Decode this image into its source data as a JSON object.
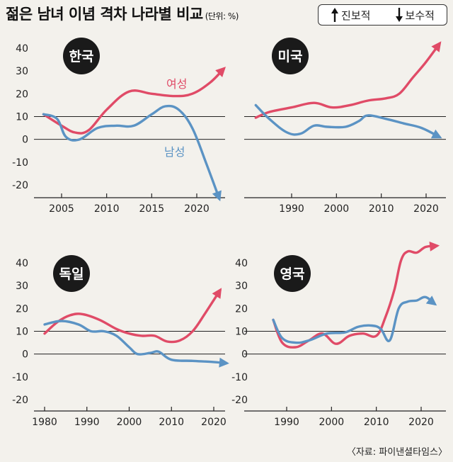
{
  "title": "젊은 남녀 이념 격차 나라별 비교",
  "unit": "(단위: %)",
  "legend": {
    "progressive": "진보적",
    "conservative": "보수적"
  },
  "source": "〈자료: 파이낸셜타임스〉",
  "colors": {
    "women": "#e04b67",
    "men": "#5b93c4",
    "axis": "#222222",
    "badge": "#1a1a1a"
  },
  "series_labels": {
    "women": "여성",
    "men": "남성"
  },
  "chart_data": [
    {
      "type": "line",
      "country": "한국",
      "xticks": [
        "2005",
        "2010",
        "2015",
        "2020"
      ],
      "yticks": [
        "40",
        "30",
        "20",
        "10",
        "0",
        "-10",
        "-20"
      ],
      "xlim": [
        2002,
        2024
      ],
      "ylim": [
        -25,
        43
      ],
      "series": [
        {
          "name": "여성",
          "x": [
            2003,
            2005,
            2006.5,
            2008,
            2010,
            2012.5,
            2015,
            2017.5,
            2019.5,
            2021.5,
            2023
          ],
          "y": [
            11,
            6,
            3,
            4,
            13,
            21,
            20,
            19,
            20,
            25,
            31
          ]
        },
        {
          "name": "남성",
          "x": [
            2003,
            2004.5,
            2005.5,
            2007,
            2009,
            2011,
            2013,
            2015,
            2016.5,
            2018,
            2019.5,
            2021,
            2022.5
          ],
          "y": [
            11,
            9,
            1,
            0,
            5,
            6,
            6,
            11,
            14.5,
            13,
            5,
            -10,
            -26
          ]
        }
      ]
    },
    {
      "type": "line",
      "country": "미국",
      "xticks": [
        "1990",
        "2000",
        "2010",
        "2020"
      ],
      "yticks": [],
      "xlim": [
        1981,
        2024
      ],
      "ylim": [
        -25,
        43
      ],
      "series": [
        {
          "name": "여성",
          "x": [
            1982,
            1985,
            1990,
            1995,
            1999,
            2003,
            2007,
            2011,
            2014,
            2017,
            2020,
            2023
          ],
          "y": [
            9.5,
            12,
            14,
            16,
            14,
            15,
            17,
            18,
            20,
            27,
            34,
            42
          ]
        },
        {
          "name": "남성",
          "x": [
            1982,
            1985,
            1989,
            1992,
            1995,
            1998,
            2002,
            2005,
            2007,
            2011,
            2015,
            2019,
            2023
          ],
          "y": [
            15,
            9,
            3,
            2.5,
            6,
            5.5,
            5.5,
            8,
            10.5,
            9,
            7,
            5,
            1
          ]
        }
      ]
    },
    {
      "type": "line",
      "country": "독일",
      "xticks": [
        "1980",
        "1990",
        "2000",
        "2010",
        "2020"
      ],
      "yticks": [
        "40",
        "30",
        "20",
        "10",
        "0",
        "-10",
        "-20"
      ],
      "xlim": [
        1977,
        2024
      ],
      "ylim": [
        -25,
        43
      ],
      "series": [
        {
          "name": "여성",
          "x": [
            1980,
            1983,
            1986,
            1989,
            1993,
            1997,
            2000,
            2003,
            2006,
            2009,
            2012,
            2015,
            2018,
            2021.5
          ],
          "y": [
            9,
            14,
            17,
            17.5,
            15,
            11,
            9,
            8,
            8,
            5.5,
            6,
            10,
            18,
            28
          ]
        },
        {
          "name": "남성",
          "x": [
            1980,
            1984,
            1988,
            1991,
            1994,
            1997,
            2000,
            2002,
            2005,
            2007,
            2010,
            2015,
            2020,
            2023
          ],
          "y": [
            13,
            14.5,
            13,
            10,
            10,
            8,
            3,
            0,
            0.5,
            1,
            -2.5,
            -3,
            -3.5,
            -4
          ]
        }
      ]
    },
    {
      "type": "line",
      "country": "영국",
      "xticks": [
        "1990",
        "2000",
        "2010",
        "2020"
      ],
      "yticks": [
        "40",
        "30",
        "20",
        "10",
        "0",
        "-10",
        "-20"
      ],
      "xlim": [
        1984,
        2024
      ],
      "ylim": [
        -25,
        43
      ],
      "series": [
        {
          "name": "여성",
          "x": [
            1987,
            1989,
            1992,
            1995,
            1998,
            2001,
            2004,
            2007,
            2010,
            2012,
            2014,
            2015.5,
            2017,
            2019,
            2021,
            2023.5
          ],
          "y": [
            15,
            5,
            3,
            6,
            9,
            4.5,
            8,
            9,
            8,
            16,
            28,
            41,
            45,
            44.5,
            47,
            47.5
          ]
        },
        {
          "name": "남성",
          "x": [
            1987,
            1989,
            1992,
            1995,
            1999,
            2003,
            2006,
            2009,
            2011,
            2013,
            2015,
            2017,
            2019,
            2021,
            2023
          ],
          "y": [
            15,
            7,
            5,
            6,
            9,
            9.5,
            12,
            12.5,
            11,
            6,
            20,
            23,
            23.5,
            25,
            22
          ]
        }
      ]
    }
  ]
}
